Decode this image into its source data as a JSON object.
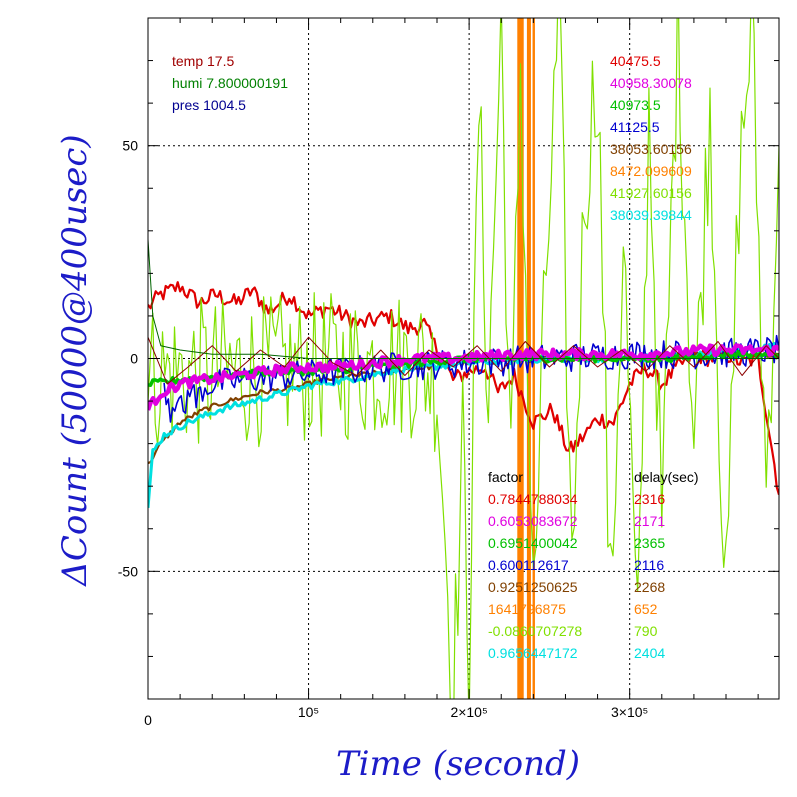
{
  "chart_data": {
    "type": "line",
    "xlabel": "Time (second)",
    "ylabel": "ΔCount (50000@400usec)",
    "xlim": [
      0,
      393000
    ],
    "ylim": [
      -80,
      80
    ],
    "grid": true,
    "x_ticks": [
      {
        "value": 0,
        "label": "0"
      },
      {
        "value": 100000,
        "label": "10⁵"
      },
      {
        "value": 200000,
        "label": "2×10⁵"
      },
      {
        "value": 300000,
        "label": "3×10⁵"
      }
    ],
    "y_ticks": [
      {
        "value": -50,
        "label": "-50"
      },
      {
        "value": 0,
        "label": "0"
      },
      {
        "value": 50,
        "label": "50"
      }
    ],
    "env": [
      {
        "text": "temp 17.5",
        "color": "#a00000"
      },
      {
        "text": "humi 7.800000191",
        "color": "#008000"
      },
      {
        "text": "pres 1004.5",
        "color": "#000090"
      }
    ],
    "legend_top": [
      {
        "text": "40475.5",
        "color": "#e00000"
      },
      {
        "text": "40958.30078",
        "color": "#e000e0"
      },
      {
        "text": "40973.5",
        "color": "#00c000"
      },
      {
        "text": "41125.5",
        "color": "#0000d0"
      },
      {
        "text": "38053.60156",
        "color": "#804000"
      },
      {
        "text": "8472.099609",
        "color": "#ff8000"
      },
      {
        "text": "41927.60156",
        "color": "#80e000"
      },
      {
        "text": "38039.39844",
        "color": "#00e0e0"
      }
    ],
    "factor_header": "factor",
    "delay_header": "delay(sec)",
    "factor_table": [
      {
        "factor": "0.7844788034",
        "delay": "2316",
        "color": "#e00000"
      },
      {
        "factor": "0.6053083672",
        "delay": "2171",
        "color": "#e000e0"
      },
      {
        "factor": "0.6951400042",
        "delay": "2365",
        "color": "#00c000"
      },
      {
        "factor": "0.600112617",
        "delay": "2116",
        "color": "#0000d0"
      },
      {
        "factor": "0.9251250625",
        "delay": "2268",
        "color": "#804000"
      },
      {
        "factor": "1641796875",
        "delay": "652",
        "color": "#ff8000"
      },
      {
        "factor": "-0.0860707278",
        "delay": "790",
        "color": "#80e000"
      },
      {
        "factor": "0.9656447172",
        "delay": "2404",
        "color": "#00e0e0"
      }
    ],
    "series": [
      {
        "color": "#e00000",
        "width": 2.2,
        "noise": 2.0,
        "points": [
          [
            0,
            12
          ],
          [
            8000,
            15
          ],
          [
            20000,
            17
          ],
          [
            32000,
            13
          ],
          [
            42000,
            15
          ],
          [
            55000,
            13
          ],
          [
            65000,
            16
          ],
          [
            75000,
            11
          ],
          [
            88000,
            15
          ],
          [
            100000,
            10
          ],
          [
            112000,
            12
          ],
          [
            122000,
            10
          ],
          [
            132000,
            8
          ],
          [
            150000,
            10
          ],
          [
            162000,
            7
          ],
          [
            172000,
            8
          ],
          [
            180000,
            2
          ],
          [
            190000,
            -5
          ],
          [
            200000,
            -3
          ],
          [
            210000,
            -2
          ],
          [
            218000,
            -8
          ],
          [
            228000,
            -4
          ],
          [
            240000,
            -15
          ],
          [
            252000,
            -12
          ],
          [
            262000,
            -22
          ],
          [
            272000,
            -18
          ],
          [
            280000,
            -14
          ],
          [
            290000,
            -15
          ],
          [
            300000,
            -6
          ],
          [
            310000,
            -2
          ],
          [
            320000,
            -6
          ],
          [
            330000,
            -2
          ],
          [
            340000,
            1
          ],
          [
            350000,
            0
          ],
          [
            360000,
            1
          ],
          [
            370000,
            -1
          ],
          [
            380000,
            0
          ],
          [
            393000,
            -32
          ]
        ]
      },
      {
        "color": "#80e000",
        "width": 1.2,
        "noise": 18.0,
        "points": [
          [
            0,
            -4
          ],
          [
            60000,
            -3
          ],
          [
            120000,
            -2
          ],
          [
            170000,
            -1
          ],
          [
            180000,
            -5
          ],
          [
            185000,
            -40
          ],
          [
            190000,
            -80
          ],
          [
            196000,
            -20
          ],
          [
            200000,
            -70
          ],
          [
            206000,
            60
          ],
          [
            212000,
            -10
          ],
          [
            220000,
            80
          ],
          [
            226000,
            -30
          ],
          [
            232000,
            70
          ],
          [
            240000,
            -60
          ],
          [
            248000,
            20
          ],
          [
            256000,
            80
          ],
          [
            264000,
            -50
          ],
          [
            272000,
            40
          ],
          [
            280000,
            70
          ],
          [
            288000,
            -60
          ],
          [
            296000,
            30
          ],
          [
            305000,
            -70
          ],
          [
            312000,
            60
          ],
          [
            320000,
            -40
          ],
          [
            330000,
            80
          ],
          [
            340000,
            -20
          ],
          [
            350000,
            60
          ],
          [
            360000,
            -60
          ],
          [
            368000,
            40
          ],
          [
            376000,
            80
          ],
          [
            385000,
            -30
          ],
          [
            393000,
            50
          ]
        ]
      },
      {
        "color": "#804000",
        "width": 2.2,
        "noise": 0.6,
        "points": [
          [
            0,
            -25
          ],
          [
            8000,
            -20
          ],
          [
            20000,
            -15
          ],
          [
            35000,
            -12
          ],
          [
            50000,
            -10
          ],
          [
            70000,
            -8
          ],
          [
            90000,
            -7
          ],
          [
            110000,
            -5
          ],
          [
            130000,
            -4
          ],
          [
            150000,
            -3
          ],
          [
            175000,
            -2
          ],
          [
            200000,
            -1
          ],
          [
            250000,
            0
          ],
          [
            300000,
            0
          ],
          [
            350000,
            1
          ],
          [
            393000,
            1
          ]
        ]
      },
      {
        "color": "#00e0e0",
        "width": 3.0,
        "noise": 0.8,
        "points": [
          [
            0,
            -35
          ],
          [
            3000,
            -22
          ],
          [
            10000,
            -18
          ],
          [
            25000,
            -15
          ],
          [
            45000,
            -12
          ],
          [
            65000,
            -10
          ],
          [
            85000,
            -8
          ],
          [
            105000,
            -6
          ],
          [
            125000,
            -5
          ],
          [
            150000,
            -3
          ],
          [
            175000,
            -2
          ],
          [
            200000,
            -1
          ],
          [
            250000,
            0
          ],
          [
            300000,
            0
          ],
          [
            350000,
            1
          ],
          [
            393000,
            3
          ]
        ]
      },
      {
        "color": "#0000d0",
        "width": 1.6,
        "noise": 3.5,
        "points": [
          [
            10000,
            -5
          ],
          [
            14000,
            -12
          ],
          [
            18000,
            -8
          ],
          [
            22000,
            -14
          ],
          [
            26000,
            -6
          ],
          [
            30000,
            -10
          ],
          [
            34000,
            -7
          ],
          [
            40000,
            -6
          ],
          [
            60000,
            -5
          ],
          [
            90000,
            -4
          ],
          [
            120000,
            -3
          ],
          [
            150000,
            -2
          ],
          [
            200000,
            -1
          ],
          [
            250000,
            0
          ],
          [
            300000,
            1
          ],
          [
            350000,
            1
          ],
          [
            393000,
            2
          ]
        ]
      },
      {
        "color": "#00c000",
        "width": 3.5,
        "noise": 0.8,
        "points": [
          [
            0,
            -6
          ],
          [
            20000,
            -5
          ],
          [
            50000,
            -4
          ],
          [
            80000,
            -3
          ],
          [
            110000,
            -3
          ],
          [
            140000,
            -2
          ],
          [
            170000,
            -1
          ],
          [
            200000,
            0
          ],
          [
            240000,
            0
          ],
          [
            280000,
            0
          ],
          [
            320000,
            0
          ],
          [
            360000,
            1
          ],
          [
            393000,
            1
          ]
        ]
      },
      {
        "color": "#e000e0",
        "width": 4.5,
        "noise": 1.2,
        "points": [
          [
            0,
            -12
          ],
          [
            8000,
            -8
          ],
          [
            20000,
            -6
          ],
          [
            35000,
            -5
          ],
          [
            55000,
            -4
          ],
          [
            75000,
            -3
          ],
          [
            95000,
            -2
          ],
          [
            115000,
            -2
          ],
          [
            140000,
            -1
          ],
          [
            165000,
            0
          ],
          [
            190000,
            0
          ],
          [
            230000,
            1
          ],
          [
            270000,
            1
          ],
          [
            310000,
            1
          ],
          [
            350000,
            2
          ],
          [
            393000,
            2
          ]
        ]
      },
      {
        "color": "#8b0000",
        "width": 1.0,
        "noise": 0.0,
        "points": [
          [
            0,
            5
          ],
          [
            12000,
            -6
          ],
          [
            25000,
            -2
          ],
          [
            40000,
            3
          ],
          [
            55000,
            -3
          ],
          [
            70000,
            2
          ],
          [
            85000,
            -2
          ],
          [
            100000,
            5
          ],
          [
            115000,
            -1
          ],
          [
            130000,
            -4
          ],
          [
            145000,
            2
          ],
          [
            160000,
            -4
          ],
          [
            175000,
            2
          ],
          [
            190000,
            -2
          ],
          [
            205000,
            3
          ],
          [
            220000,
            -3
          ],
          [
            235000,
            4
          ],
          [
            250000,
            -2
          ],
          [
            265000,
            3
          ],
          [
            280000,
            -2
          ],
          [
            295000,
            2
          ],
          [
            310000,
            -3
          ],
          [
            325000,
            3
          ],
          [
            340000,
            -2
          ],
          [
            355000,
            4
          ],
          [
            370000,
            -4
          ],
          [
            385000,
            3
          ],
          [
            393000,
            0
          ]
        ]
      },
      {
        "color": "#006400",
        "width": 1.0,
        "noise": 0.0,
        "points": [
          [
            0,
            28
          ],
          [
            3000,
            10
          ],
          [
            8000,
            3
          ],
          [
            20000,
            2
          ],
          [
            40000,
            1
          ],
          [
            70000,
            1
          ],
          [
            100000,
            0
          ],
          [
            150000,
            0
          ],
          [
            200000,
            0
          ],
          [
            300000,
            0
          ],
          [
            393000,
            0
          ]
        ]
      }
    ],
    "orange_bands": [
      [
        230000,
        234000
      ],
      [
        236000,
        238500
      ],
      [
        239500,
        241000
      ]
    ]
  }
}
